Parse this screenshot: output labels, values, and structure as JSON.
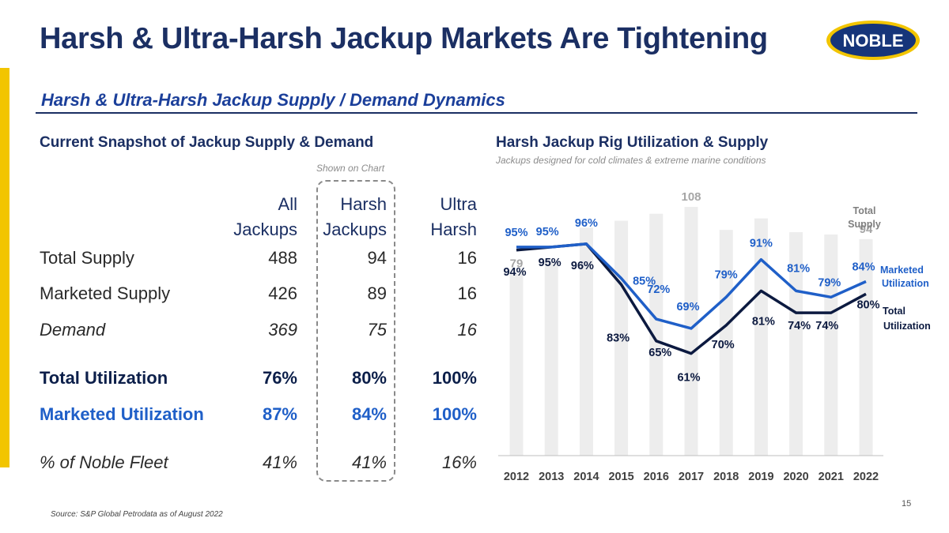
{
  "title": "Harsh & Ultra-Harsh Jackup Markets Are Tightening",
  "logo_text": "NOBLE",
  "subtitle": "Harsh & Ultra-Harsh Jackup Supply / Demand Dynamics",
  "left_section": {
    "heading": "Current Snapshot of Jackup Supply & Demand",
    "shown_on_chart": "Shown on Chart",
    "columns": [
      {
        "line1": "All",
        "line2": "Jackups"
      },
      {
        "line1": "Harsh",
        "line2": "Jackups"
      },
      {
        "line1": "Ultra",
        "line2": "Harsh"
      }
    ],
    "rows": [
      {
        "label": "Total Supply",
        "values": [
          "488",
          "94",
          "16"
        ]
      },
      {
        "label": "Marketed Supply",
        "values": [
          "426",
          "89",
          "16"
        ]
      },
      {
        "label": "Demand",
        "values": [
          "369",
          "75",
          "16"
        ]
      },
      {
        "label": "Total Utilization",
        "values": [
          "76%",
          "80%",
          "100%"
        ]
      },
      {
        "label": "Marketed Utilization",
        "values": [
          "87%",
          "84%",
          "100%"
        ]
      },
      {
        "label": "% of Noble Fleet",
        "values": [
          "41%",
          "41%",
          "16%"
        ]
      }
    ]
  },
  "right_section": {
    "heading": "Harsh Jackup Rig Utilization & Supply",
    "note": "Jackups designed for cold climates & extreme marine conditions"
  },
  "chart_data": {
    "type": "bar",
    "title": "Harsh Jackup Rig Utilization & Supply",
    "categories": [
      "2012",
      "2013",
      "2014",
      "2015",
      "2016",
      "2017",
      "2018",
      "2019",
      "2020",
      "2021",
      "2022"
    ],
    "series": [
      {
        "name": "Total Supply",
        "type": "bar",
        "axis": "supply",
        "values": [
          79,
          84,
          99,
          102,
          105,
          108,
          98,
          103,
          97,
          96,
          94
        ],
        "labels": [
          "79",
          "",
          "",
          "",
          "",
          "108",
          "",
          "",
          "",
          "",
          "94"
        ]
      },
      {
        "name": "Marketed Utilization",
        "type": "line",
        "axis": "percent",
        "values": [
          95,
          95,
          96,
          85,
          72,
          69,
          79,
          91,
          81,
          79,
          84
        ],
        "labels": [
          "95%",
          "95%",
          "96%",
          "85%",
          "72%",
          "69%",
          "79%",
          "91%",
          "81%",
          "79%",
          "84%"
        ]
      },
      {
        "name": "Total Utilization",
        "type": "line",
        "axis": "percent",
        "values": [
          94,
          95,
          96,
          83,
          65,
          61,
          70,
          81,
          74,
          74,
          80
        ],
        "labels": [
          "94%",
          "95%",
          "96%",
          "83%",
          "65%",
          "61%",
          "70%",
          "81%",
          "74%",
          "74%",
          "80%"
        ]
      }
    ],
    "legend": {
      "supply": [
        "Total",
        "Supply"
      ],
      "marketed": [
        "Marketed",
        "Utilization"
      ],
      "total": [
        "Total",
        "Utilization"
      ]
    },
    "supply_range": [
      0,
      108
    ],
    "percent_range": [
      40,
      100
    ],
    "colors": {
      "bars": "#ededed",
      "bar_labels": "#a6a6a6",
      "marketed": "#1f5fc8",
      "total": "#0c1a40",
      "axis": "#bfbfbf",
      "legend_supply": "#7f7f7f"
    }
  },
  "footer": {
    "source": "Source:  S&P Global Petrodata as of August 2022",
    "page": "15"
  }
}
